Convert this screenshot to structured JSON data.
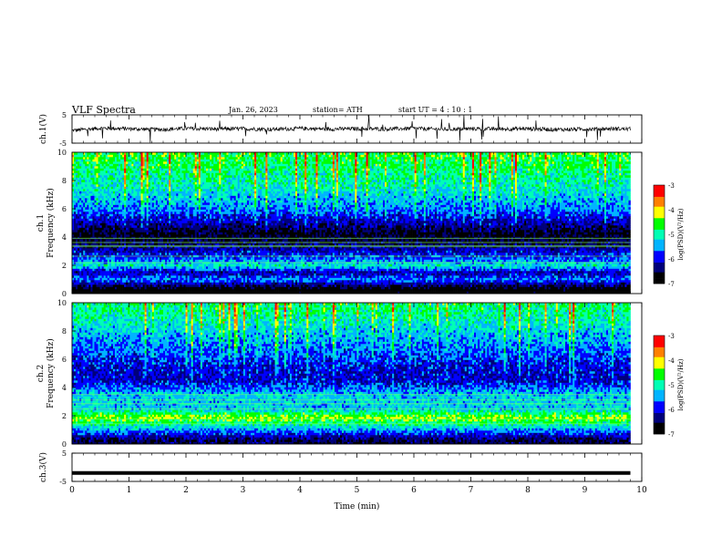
{
  "header": {
    "title": "VLF Spectra",
    "date": "Jan. 26, 2023",
    "station": "station= ATH",
    "start": "start UT =  4 : 10 : 1"
  },
  "chart_data": [
    {
      "type": "line",
      "panel": "ch1_waveform",
      "ylabel": "ch.1(V)",
      "ylim": [
        -5,
        5
      ],
      "yticks": [
        "5",
        "-5"
      ],
      "xlim": [
        0,
        10
      ],
      "x": [
        0,
        0.5,
        1,
        1.5,
        2,
        2.5,
        3,
        3.5,
        4,
        4.5,
        5,
        5.5,
        6,
        6.5,
        7,
        7.5,
        8,
        8.5,
        9,
        9.5,
        9.8
      ],
      "values": [
        -0.5,
        0.3,
        0.1,
        -0.2,
        0.2,
        0.0,
        0.1,
        -0.1,
        0.2,
        0.0,
        0.1,
        0.0,
        0.2,
        -0.1,
        0.1,
        0.0,
        0.1,
        -0.2,
        0.0,
        0.1,
        0.0
      ],
      "color": "#000000"
    },
    {
      "type": "heatmap",
      "panel": "ch1_spectrogram",
      "ylabel_channel": "ch.1",
      "ylabel": "Frequency (kHz)",
      "ylim": [
        0,
        10
      ],
      "yticks": [
        "0",
        "2",
        "4",
        "6",
        "8",
        "10"
      ],
      "xlim": [
        0,
        10
      ],
      "data_end_min": 9.8,
      "colorbar_label": "log(PSD)(V²/Hz)",
      "colorbar_ticks": [
        "-3",
        "-4",
        "-5",
        "-6",
        "-7"
      ],
      "colorbar_range": [
        -7,
        -3
      ],
      "approx_level_by_frequency_khz": [
        {
          "f": 0.3,
          "level": -7.0
        },
        {
          "f": 1.0,
          "level": -5.6
        },
        {
          "f": 1.5,
          "level": -6.2
        },
        {
          "f": 2.0,
          "level": -5.1
        },
        {
          "f": 2.6,
          "level": -5.8
        },
        {
          "f": 3.3,
          "level": -6.3
        },
        {
          "f": 4.2,
          "level": -6.8
        },
        {
          "f": 5.0,
          "level": -6.2
        },
        {
          "f": 6.0,
          "level": -5.6
        },
        {
          "f": 7.5,
          "level": -5.1
        },
        {
          "f": 9.0,
          "level": -4.8
        },
        {
          "f": 10.0,
          "level": -4.6
        }
      ]
    },
    {
      "type": "heatmap",
      "panel": "ch2_spectrogram",
      "ylabel_channel": "ch.2",
      "ylabel": "Frequency (kHz)",
      "ylim": [
        0,
        10
      ],
      "yticks": [
        "0",
        "2",
        "4",
        "6",
        "8",
        "10"
      ],
      "xlim": [
        0,
        10
      ],
      "data_end_min": 9.8,
      "colorbar_label": "log(PSD)(V²/Hz)",
      "colorbar_ticks": [
        "-3",
        "-4",
        "-5",
        "-6",
        "-7"
      ],
      "colorbar_range": [
        -7,
        -3
      ],
      "approx_level_by_frequency_khz": [
        {
          "f": 0.3,
          "level": -6.5
        },
        {
          "f": 1.0,
          "level": -5.5
        },
        {
          "f": 1.9,
          "level": -4.3
        },
        {
          "f": 2.5,
          "level": -5.3
        },
        {
          "f": 3.5,
          "level": -5.3
        },
        {
          "f": 4.5,
          "level": -6.1
        },
        {
          "f": 5.5,
          "level": -6.0
        },
        {
          "f": 6.5,
          "level": -5.7
        },
        {
          "f": 8.0,
          "level": -5.3
        },
        {
          "f": 9.0,
          "level": -5.0
        },
        {
          "f": 10.0,
          "level": -4.8
        }
      ]
    },
    {
      "type": "line",
      "panel": "ch3_waveform",
      "ylabel": "ch.3(V)",
      "ylim": [
        -5,
        5
      ],
      "yticks": [
        "5",
        "-5"
      ],
      "xlim": [
        0,
        10
      ],
      "x": [
        0,
        9.8
      ],
      "values": [
        -2,
        -2
      ],
      "color": "#000000"
    }
  ],
  "xaxis": {
    "label": "Time (min)",
    "ticks": [
      "0",
      "1",
      "2",
      "3",
      "4",
      "5",
      "6",
      "7",
      "8",
      "9",
      "10"
    ]
  },
  "colormap": [
    "#000000",
    "#00007a",
    "#0000ff",
    "#00b4ff",
    "#00ffb4",
    "#00ff00",
    "#ffff00",
    "#ff8000",
    "#ff0000",
    "#ffffff"
  ]
}
